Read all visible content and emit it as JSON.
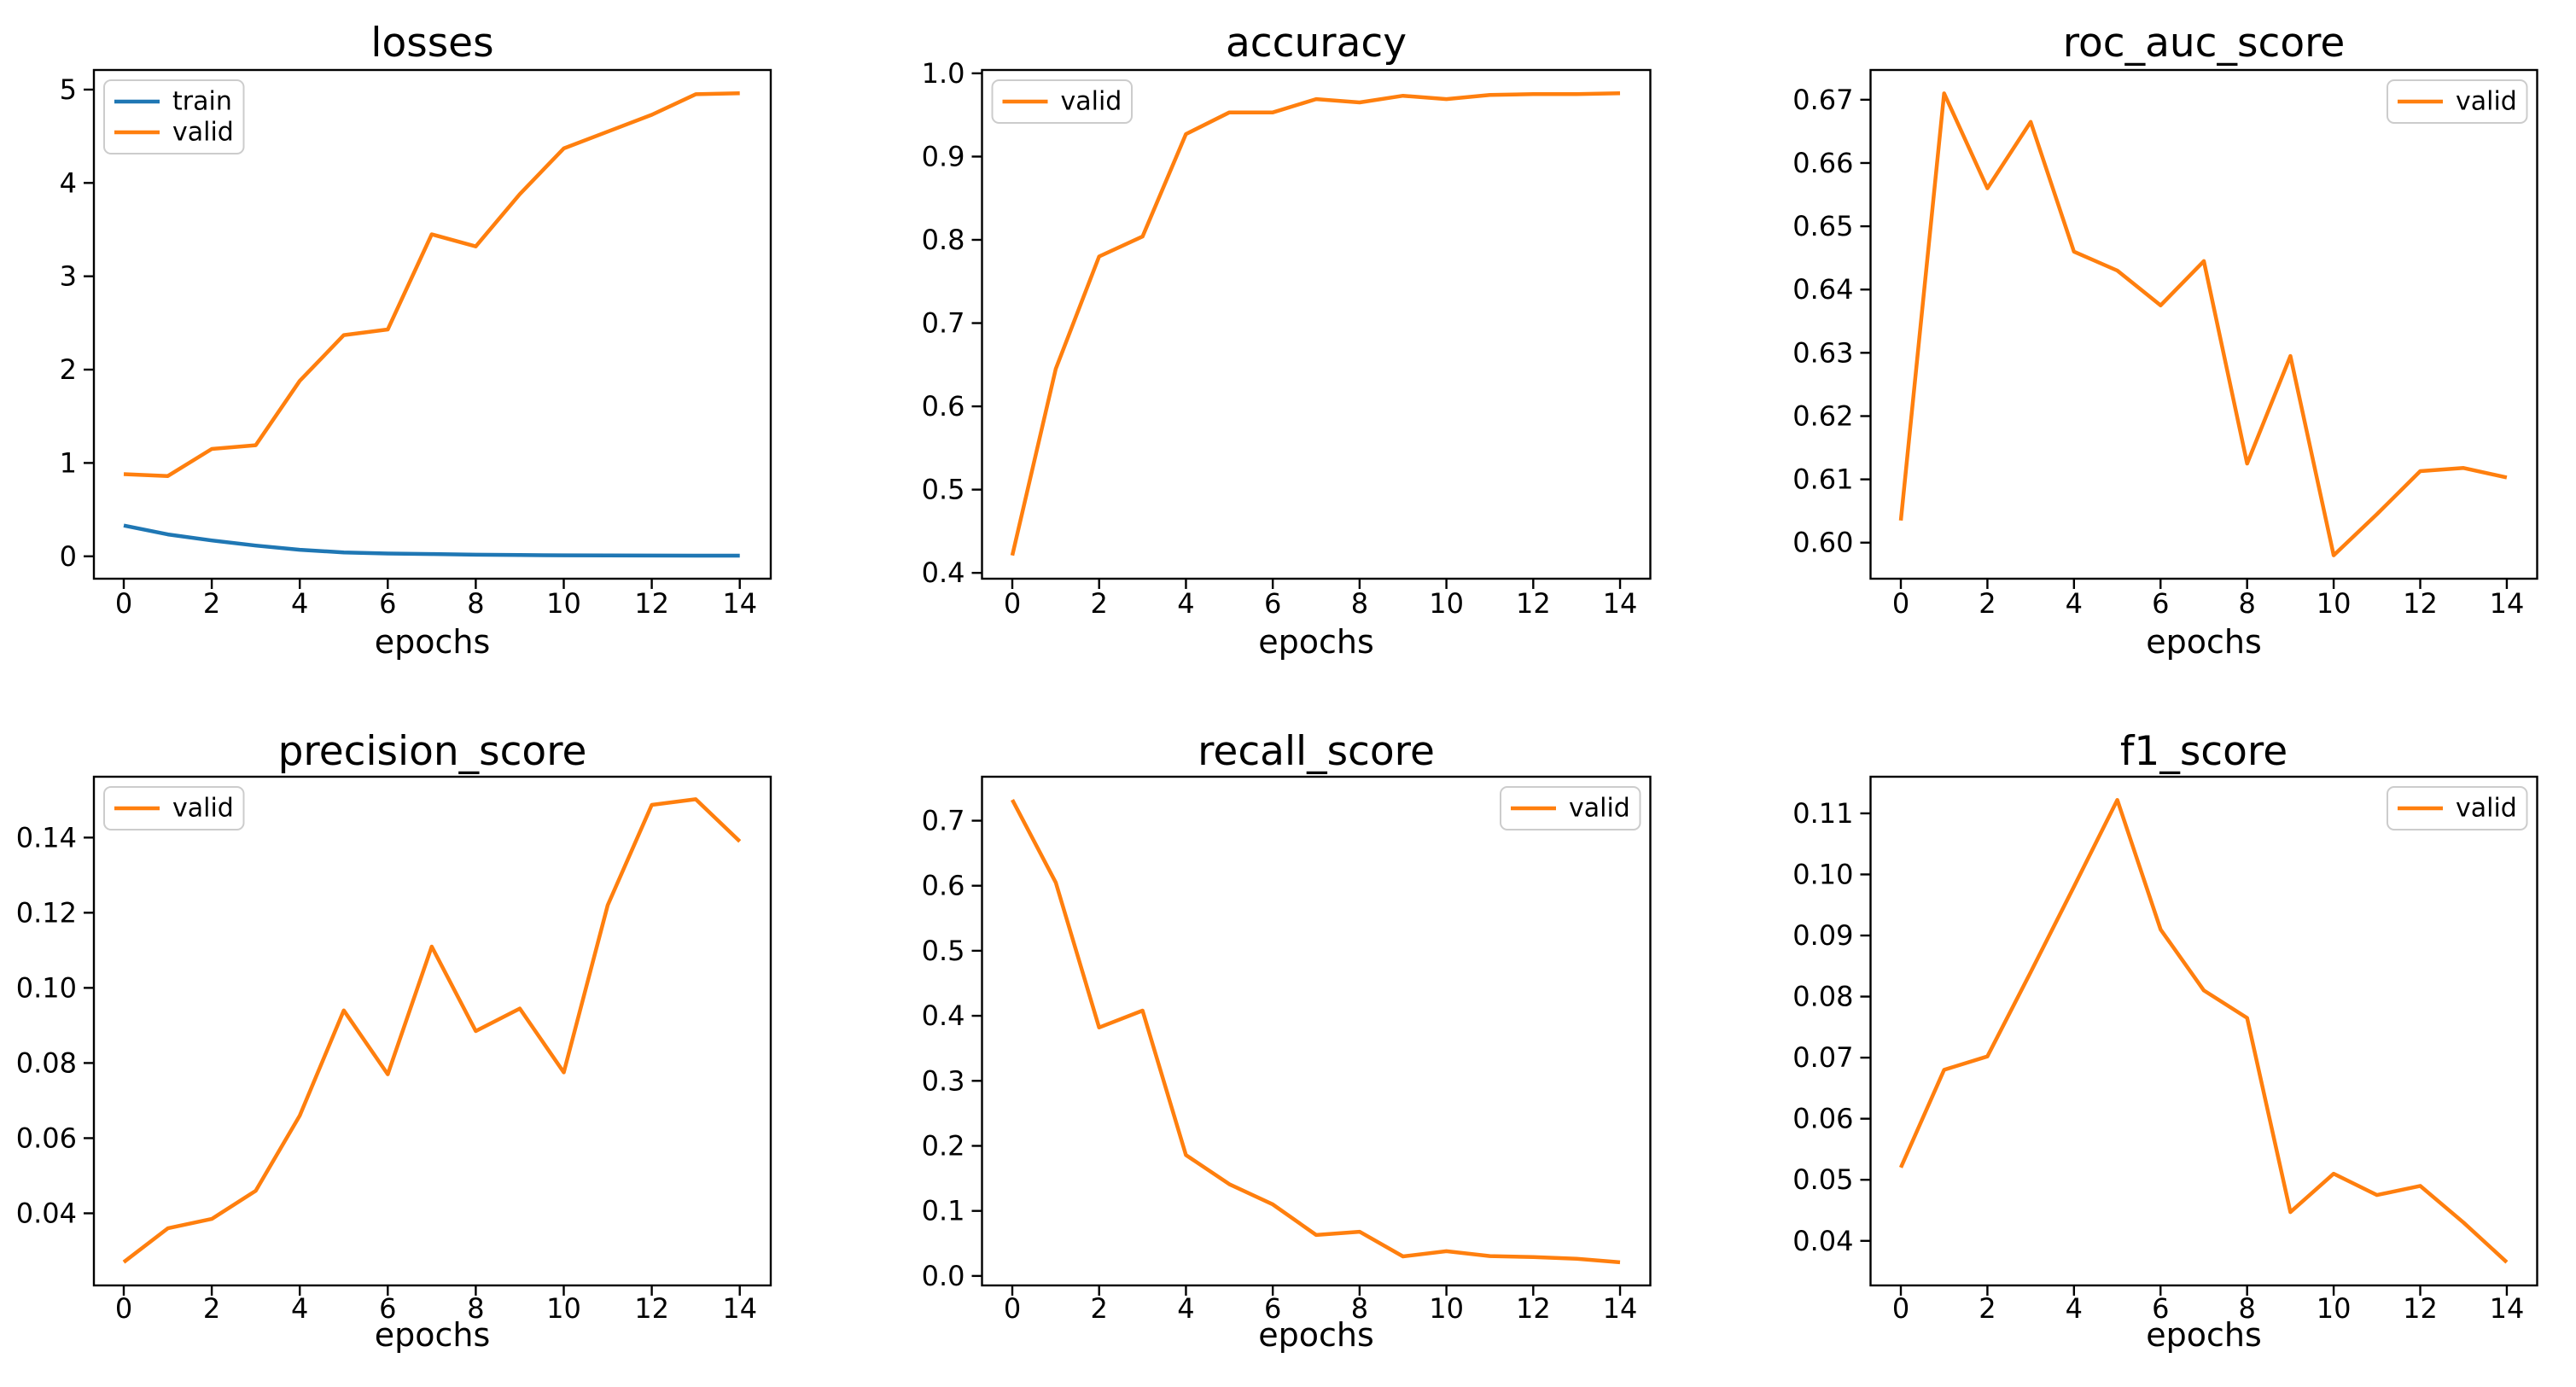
{
  "figure": {
    "background": "#ffffff",
    "rows": 2,
    "cols": 3,
    "x_axis_label": "epochs",
    "x_ticks": [
      0,
      2,
      4,
      6,
      8,
      10,
      12,
      14
    ],
    "epochs": [
      0,
      1,
      2,
      3,
      4,
      5,
      6,
      7,
      8,
      9,
      10,
      11,
      12,
      13,
      14
    ]
  },
  "colors": {
    "train": "#1f77b4",
    "valid": "#ff7f0e",
    "axes": "#000000",
    "text": "#000000",
    "legend_border": "#cccccc",
    "legend_background": "#ffffff"
  },
  "chart_data": [
    {
      "type": "line",
      "title": "losses",
      "xlabel": "epochs",
      "x": [
        0,
        1,
        2,
        3,
        4,
        5,
        6,
        7,
        8,
        9,
        10,
        11,
        12,
        13,
        14
      ],
      "xlim": [
        -0.7,
        14.7
      ],
      "ylim": [
        -0.24,
        5.21
      ],
      "yticks": [
        0,
        1,
        2,
        3,
        4,
        5
      ],
      "ytick_decimals": 0,
      "legend_position": "upper-left",
      "series": [
        {
          "name": "train",
          "color_key": "train",
          "values": [
            0.33,
            0.235,
            0.17,
            0.115,
            0.07,
            0.042,
            0.03,
            0.024,
            0.017,
            0.013,
            0.011,
            0.009,
            0.008,
            0.007,
            0.007
          ]
        },
        {
          "name": "valid",
          "color_key": "valid",
          "values": [
            0.88,
            0.86,
            1.15,
            1.19,
            1.88,
            2.37,
            2.43,
            3.45,
            3.32,
            3.88,
            4.37,
            4.55,
            4.73,
            4.95,
            4.96
          ]
        }
      ]
    },
    {
      "type": "line",
      "title": "accuracy",
      "xlabel": "epochs",
      "x": [
        0,
        1,
        2,
        3,
        4,
        5,
        6,
        7,
        8,
        9,
        10,
        11,
        12,
        13,
        14
      ],
      "xlim": [
        -0.7,
        14.7
      ],
      "ylim": [
        0.393,
        1.004
      ],
      "yticks": [
        0.4,
        0.5,
        0.6,
        0.7,
        0.8,
        0.9,
        1.0
      ],
      "ytick_decimals": 1,
      "legend_position": "upper-left",
      "series": [
        {
          "name": "valid",
          "color_key": "valid",
          "values": [
            0.421,
            0.645,
            0.78,
            0.804,
            0.927,
            0.953,
            0.953,
            0.969,
            0.965,
            0.973,
            0.969,
            0.974,
            0.975,
            0.975,
            0.976
          ]
        }
      ]
    },
    {
      "type": "line",
      "title": "roc_auc_score",
      "xlabel": "epochs",
      "x": [
        0,
        1,
        2,
        3,
        4,
        5,
        6,
        7,
        8,
        9,
        10,
        11,
        12,
        13,
        14
      ],
      "xlim": [
        -0.7,
        14.7
      ],
      "ylim": [
        0.5943,
        0.6747
      ],
      "yticks": [
        0.6,
        0.61,
        0.62,
        0.63,
        0.64,
        0.65,
        0.66,
        0.67
      ],
      "ytick_decimals": 2,
      "legend_position": "upper-right",
      "series": [
        {
          "name": "valid",
          "color_key": "valid",
          "values": [
            0.6035,
            0.671,
            0.656,
            0.6665,
            0.646,
            0.643,
            0.6375,
            0.6445,
            0.6125,
            0.6295,
            0.598,
            0.6045,
            0.6113,
            0.6118,
            0.6103
          ]
        }
      ]
    },
    {
      "type": "line",
      "title": "precision_score",
      "xlabel": "epochs",
      "x": [
        0,
        1,
        2,
        3,
        4,
        5,
        6,
        7,
        8,
        9,
        10,
        11,
        12,
        13,
        14
      ],
      "xlim": [
        -0.7,
        14.7
      ],
      "ylim": [
        0.0208,
        0.1562
      ],
      "yticks": [
        0.04,
        0.06,
        0.08,
        0.1,
        0.12,
        0.14
      ],
      "ytick_decimals": 2,
      "legend_position": "upper-left",
      "series": [
        {
          "name": "valid",
          "color_key": "valid",
          "values": [
            0.027,
            0.036,
            0.0385,
            0.046,
            0.066,
            0.094,
            0.077,
            0.111,
            0.0885,
            0.0945,
            0.0775,
            0.122,
            0.1487,
            0.1502,
            0.139
          ]
        }
      ]
    },
    {
      "type": "line",
      "title": "recall_score",
      "xlabel": "epochs",
      "x": [
        0,
        1,
        2,
        3,
        4,
        5,
        6,
        7,
        8,
        9,
        10,
        11,
        12,
        13,
        14
      ],
      "xlim": [
        -0.7,
        14.7
      ],
      "ylim": [
        -0.0146,
        0.7676
      ],
      "yticks": [
        0.0,
        0.1,
        0.2,
        0.3,
        0.4,
        0.5,
        0.6,
        0.7
      ],
      "ytick_decimals": 1,
      "legend_position": "upper-right",
      "series": [
        {
          "name": "valid",
          "color_key": "valid",
          "values": [
            0.732,
            0.605,
            0.382,
            0.408,
            0.186,
            0.141,
            0.11,
            0.063,
            0.068,
            0.03,
            0.038,
            0.0305,
            0.029,
            0.0265,
            0.021
          ]
        }
      ]
    },
    {
      "type": "line",
      "title": "f1_score",
      "xlabel": "epochs",
      "x": [
        0,
        1,
        2,
        3,
        4,
        5,
        6,
        7,
        8,
        9,
        10,
        11,
        12,
        13,
        14
      ],
      "xlim": [
        -0.7,
        14.7
      ],
      "ylim": [
        0.0327,
        0.116
      ],
      "yticks": [
        0.04,
        0.05,
        0.06,
        0.07,
        0.08,
        0.09,
        0.1,
        0.11
      ],
      "ytick_decimals": 2,
      "legend_position": "upper-right",
      "series": [
        {
          "name": "valid",
          "color_key": "valid",
          "values": [
            0.052,
            0.068,
            0.0702,
            0.084,
            0.098,
            0.1122,
            0.091,
            0.081,
            0.0765,
            0.0447,
            0.051,
            0.0475,
            0.049,
            0.043,
            0.0365
          ]
        }
      ]
    }
  ]
}
